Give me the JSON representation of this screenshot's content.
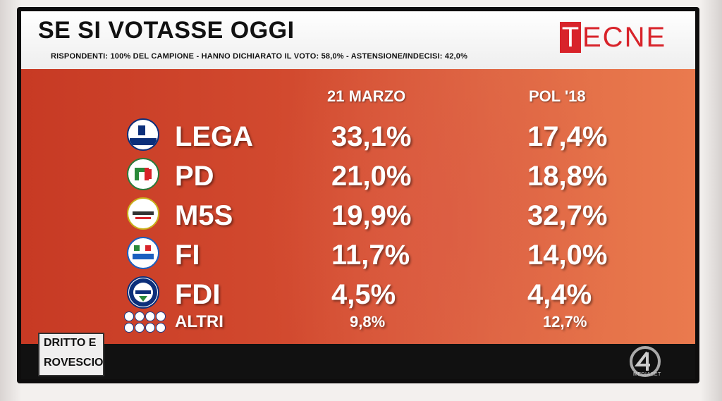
{
  "header": {
    "title": "SE SI VOTASSE OGGI",
    "subtitle": "RISPONDENTI: 100% DEL CAMPIONE - HANNO DICHIARATO IL VOTO: 58,0% - ASTENSIONE/INDECISI: 42,0%",
    "logo": "TECNE",
    "logo_initial": "T",
    "logo_rest": "ECNE"
  },
  "columns": {
    "col1": "21 MARZO",
    "col2": "POL '18"
  },
  "rows": [
    {
      "party": "LEGA",
      "v1": "33,1%",
      "v2": "17,4%"
    },
    {
      "party": "PD",
      "v1": "21,0%",
      "v2": "18,8%"
    },
    {
      "party": "M5S",
      "v1": "19,9%",
      "v2": "32,7%"
    },
    {
      "party": "FI",
      "v1": "11,7%",
      "v2": "14,0%"
    },
    {
      "party": "FDI",
      "v1": "4,5%",
      "v2": "4,4%"
    },
    {
      "party": "ALTRI",
      "v1": "9,8%",
      "v2": "12,7%"
    }
  ],
  "footer": {
    "show_line1": "DRITTO E",
    "show_line2": "ROVESCIO",
    "channel": "MEDIASET"
  },
  "colors": {
    "accent_red": "#d8232a",
    "panel_bg": "#d24a2f",
    "text_white": "#ffffff"
  }
}
